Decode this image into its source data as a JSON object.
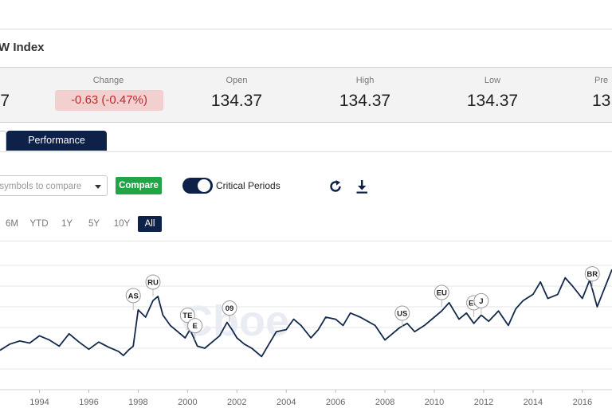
{
  "header": {
    "title": "W Index"
  },
  "quote": {
    "partial_value": "7",
    "change_label": "Change",
    "change_value": "-0.63 (-0.47%)",
    "open_label": "Open",
    "open_value": "134.37",
    "high_label": "High",
    "high_value": "134.37",
    "low_label": "Low",
    "low_value": "134.37",
    "prev_label": "Pre",
    "prev_value": "13"
  },
  "tabs": {
    "performance": "Performance"
  },
  "toolbar": {
    "compare_placeholder": "t symbols to compare",
    "compare_button": "Compare",
    "critical_periods_label": "Critical Periods",
    "critical_periods_on": true,
    "refresh_icon": "refresh-icon",
    "download_icon": "download-icon"
  },
  "ranges": [
    "6M",
    "YTD",
    "1Y",
    "5Y",
    "10Y",
    "All"
  ],
  "active_range": "All",
  "colors": {
    "navy": "#0d2149",
    "green": "#22a547",
    "negative": "#c0282b",
    "line": "#13294b"
  },
  "chart_data": {
    "type": "line",
    "watermark": "Cboe",
    "x_ticks": [
      "1994",
      "1996",
      "1998",
      "2000",
      "2002",
      "2004",
      "2006",
      "2008",
      "2010",
      "2012",
      "2014",
      "2016"
    ],
    "xlim": [
      1992.4,
      2017.2
    ],
    "ylim": [
      40,
      180
    ],
    "grid": true,
    "series": [
      {
        "x": [
          1992.4,
          1992.8,
          1993.2,
          1993.6,
          1994.0,
          1994.4,
          1994.8,
          1995.2,
          1995.6,
          1996.0,
          1996.4,
          1996.8,
          1997.2,
          1997.4,
          1997.6,
          1997.8,
          1998.0,
          1998.3,
          1998.6,
          1998.8,
          1999.0,
          1999.3,
          1999.6,
          1999.9,
          2000.1,
          2000.4,
          2000.7,
          2001.0,
          2001.3,
          2001.6,
          2001.8,
          2002.0,
          2002.3,
          2002.6,
          2003.0,
          2003.3,
          2003.6,
          2004.0,
          2004.3,
          2004.6,
          2005.0,
          2005.3,
          2005.6,
          2006.0,
          2006.3,
          2006.6,
          2007.0,
          2007.3,
          2007.6,
          2008.0,
          2008.3,
          2008.6,
          2008.9,
          2009.2,
          2009.6,
          2010.0,
          2010.3,
          2010.6,
          2011.0,
          2011.3,
          2011.6,
          2011.9,
          2012.2,
          2012.6,
          2013.0,
          2013.3,
          2013.6,
          2014.0,
          2014.3,
          2014.6,
          2015.0,
          2015.3,
          2015.6,
          2016.0,
          2016.3,
          2016.6,
          2016.9,
          2017.2
        ],
        "y": [
          78,
          84,
          87,
          85,
          92,
          88,
          82,
          94,
          86,
          79,
          86,
          81,
          77,
          73,
          78,
          82,
          117,
          110,
          126,
          130,
          112,
          102,
          96,
          90,
          98,
          82,
          80,
          86,
          92,
          105,
          98,
          90,
          84,
          80,
          72,
          84,
          96,
          98,
          108,
          102,
          90,
          98,
          110,
          108,
          102,
          114,
          110,
          106,
          102,
          88,
          94,
          100,
          104,
          96,
          102,
          110,
          116,
          124,
          108,
          114,
          104,
          112,
          106,
          116,
          102,
          118,
          126,
          132,
          144,
          128,
          132,
          148,
          140,
          128,
          146,
          120,
          138,
          156
        ]
      }
    ],
    "annotations": [
      {
        "label": "AS",
        "x": 1997.8,
        "y": 117
      },
      {
        "label": "RU",
        "x": 1998.6,
        "y": 130
      },
      {
        "label": "TE",
        "x": 2000.0,
        "y": 98
      },
      {
        "label": "E",
        "x": 2000.3,
        "y": 88
      },
      {
        "label": "09",
        "x": 2001.7,
        "y": 105
      },
      {
        "label": "US",
        "x": 2008.7,
        "y": 100
      },
      {
        "label": "EU",
        "x": 2010.3,
        "y": 120
      },
      {
        "label": "EU",
        "x": 2011.6,
        "y": 110
      },
      {
        "label": "J",
        "x": 2011.9,
        "y": 112
      },
      {
        "label": "BR",
        "x": 2016.4,
        "y": 138
      }
    ]
  }
}
